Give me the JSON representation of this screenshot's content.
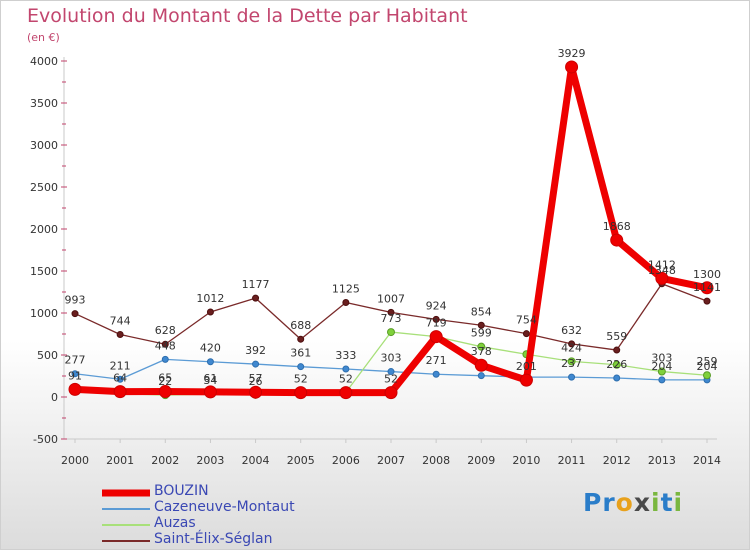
{
  "title": "Evolution du Montant de la Dette par Habitant",
  "subtitle": "(en €)",
  "logo": {
    "text": "Proxiti",
    "letters": [
      "P",
      "r",
      "o",
      "x",
      "i",
      "t",
      "i"
    ],
    "colors": [
      "#2a7dc9",
      "#2a7dc9",
      "#e8a11c",
      "#4a4a4a",
      "#7ab73f",
      "#2a7dc9",
      "#7ab73f"
    ]
  },
  "chart_data": {
    "type": "line",
    "title": "Evolution du Montant de la Dette par Habitant",
    "ylabel": "(en €)",
    "xlabel": "",
    "ylim": [
      -500,
      4000
    ],
    "yticks": [
      -500,
      0,
      500,
      1000,
      1500,
      2000,
      2500,
      3000,
      3500,
      4000
    ],
    "x": [
      "2000",
      "2001",
      "2002",
      "2003",
      "2004",
      "2005",
      "2006",
      "2007",
      "2008",
      "2009",
      "2010",
      "2011",
      "2012",
      "2013",
      "2014"
    ],
    "grid": false,
    "legend_position": "bottom",
    "series": [
      {
        "name": "BOUZIN",
        "color": "#ee0000",
        "values": [
          91,
          64,
          65,
          61,
          57,
          52,
          52,
          52,
          719,
          378,
          201,
          3929,
          1868,
          1412,
          1300
        ],
        "labels": [
          "91",
          "64",
          "65",
          "61",
          "57",
          "52",
          "52",
          "52",
          "719",
          "378",
          "201",
          "3929",
          "1868",
          "1412",
          "1300"
        ]
      },
      {
        "name": "Cazeneuve-Montaut",
        "color": "#5b9bd5",
        "values": [
          277,
          211,
          448,
          420,
          392,
          361,
          333,
          303,
          271,
          254,
          237,
          237,
          226,
          204,
          204
        ],
        "labels": [
          "277",
          "211",
          "448",
          "420",
          "392",
          "361",
          "333",
          "303",
          "271",
          "",
          "",
          "237",
          "226",
          "204",
          "204"
        ]
      },
      {
        "name": "Auzas",
        "color": "#a8e07a",
        "values": [
          100,
          40,
          22,
          34,
          26,
          50,
          55,
          773,
          719,
          599,
          509,
          424,
          384,
          303,
          259
        ],
        "labels": [
          "",
          "",
          "22",
          "34",
          "26",
          "",
          "",
          "773",
          "",
          "599",
          "",
          "424",
          "",
          "303",
          "259"
        ]
      },
      {
        "name": "Saint-Élix-Séglan",
        "color": "#7a2a2a",
        "values": [
          993,
          744,
          628,
          1012,
          1177,
          688,
          1125,
          1007,
          924,
          854,
          754,
          632,
          559,
          1348,
          1141
        ],
        "labels": [
          "993",
          "744",
          "628",
          "1012",
          "1177",
          "688",
          "1125",
          "1007",
          "924",
          "854",
          "754",
          "632",
          "559",
          "1348",
          "1141"
        ]
      }
    ]
  }
}
